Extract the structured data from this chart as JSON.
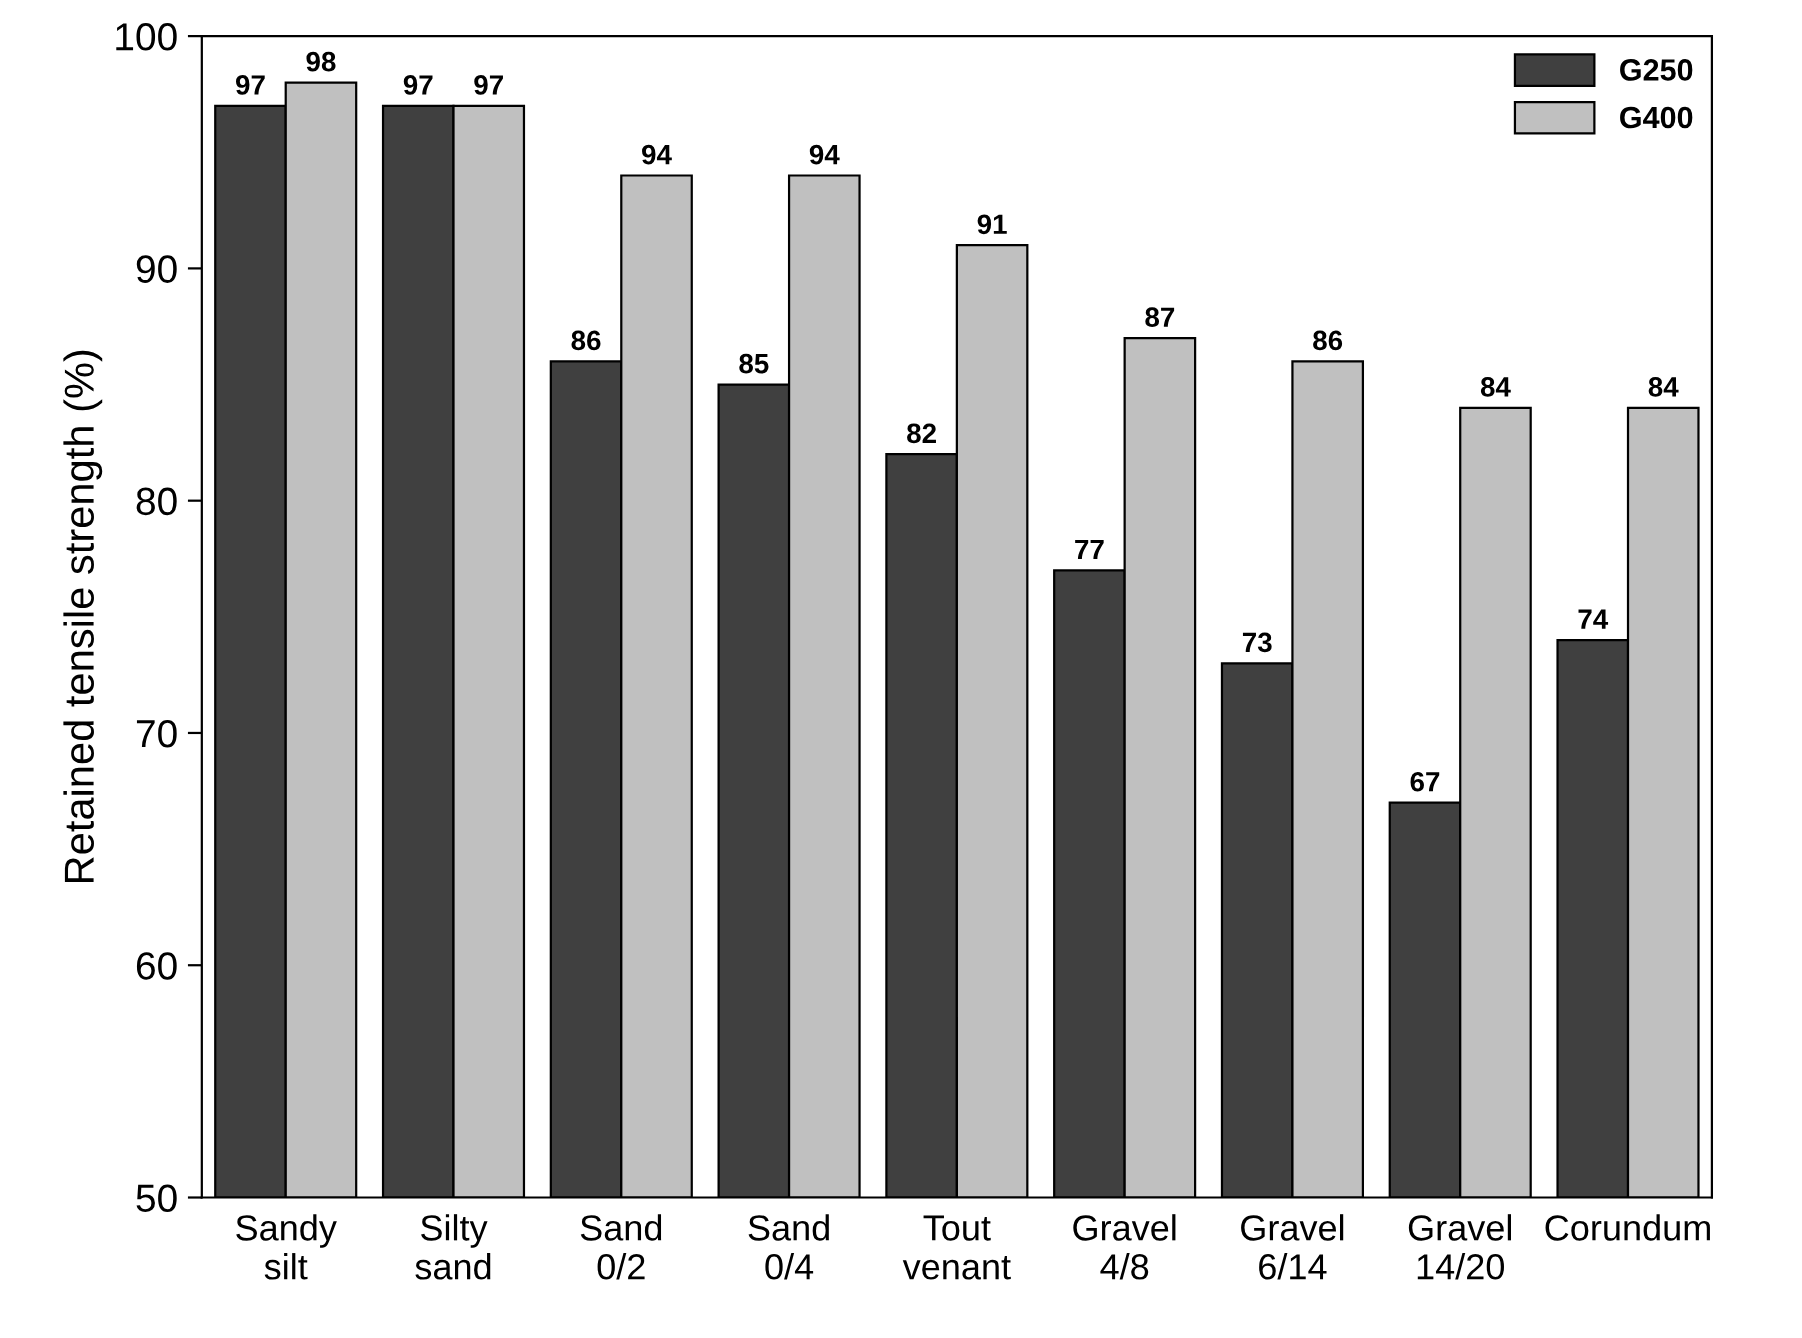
{
  "chart_data": {
    "type": "bar",
    "ylabel": "Retained tensile strength (%)",
    "categories": [
      "Sandy\nsilt",
      "Silty\nsand",
      "Sand\n0/2",
      "Sand\n0/4",
      "Tout\nvenant",
      "Gravel\n4/8",
      "Gravel\n6/14",
      "Gravel\n14/20",
      "Corundum"
    ],
    "series": [
      {
        "name": "G250",
        "color": "#404040",
        "values": [
          97,
          97,
          86,
          85,
          82,
          77,
          73,
          67,
          74
        ]
      },
      {
        "name": "G400",
        "color": "#c0c0c0",
        "values": [
          98,
          97,
          94,
          94,
          91,
          87,
          86,
          84,
          84
        ]
      }
    ],
    "ylim": [
      50,
      100
    ],
    "yticks": [
      50,
      60,
      70,
      80,
      90,
      100
    ],
    "data_labels": true,
    "legend": "top right",
    "grid": false
  }
}
